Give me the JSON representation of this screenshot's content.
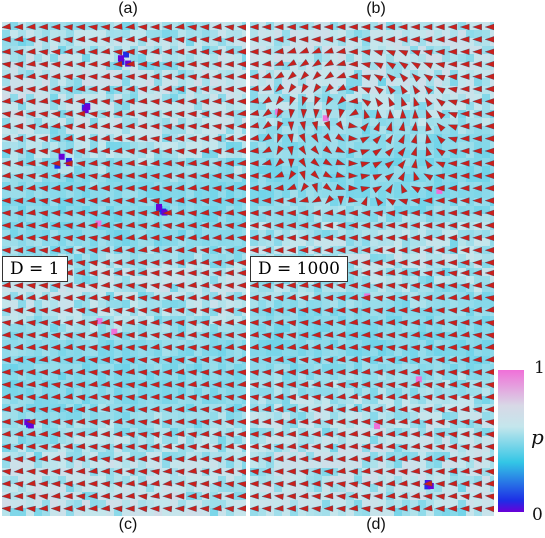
{
  "panels": [
    {
      "label": "(a)",
      "param": "D = 1",
      "flow": "uniform",
      "dark_spots": 4,
      "pink_spots": 1
    },
    {
      "label": "(b)",
      "param": "D = 1000",
      "flow": "vortex",
      "dark_spots": 0,
      "pink_spots": 3
    },
    {
      "label": "(c)",
      "param": "",
      "flow": "uniform",
      "dark_spots": 1,
      "pink_spots": 2
    },
    {
      "label": "(d)",
      "param": "",
      "flow": "uniform",
      "dark_spots": 1,
      "pink_spots": 3
    }
  ],
  "colorbar": {
    "variable": "p",
    "max_label": "1",
    "min_label": "0",
    "colors": [
      "#6a00d8",
      "#1e2ee6",
      "#33c6e6",
      "#c4e6ec",
      "#d8d8e6",
      "#f070d8"
    ]
  },
  "arrow_color": "#c8201c",
  "arrow_shadow_color": "#2a4a6a"
}
